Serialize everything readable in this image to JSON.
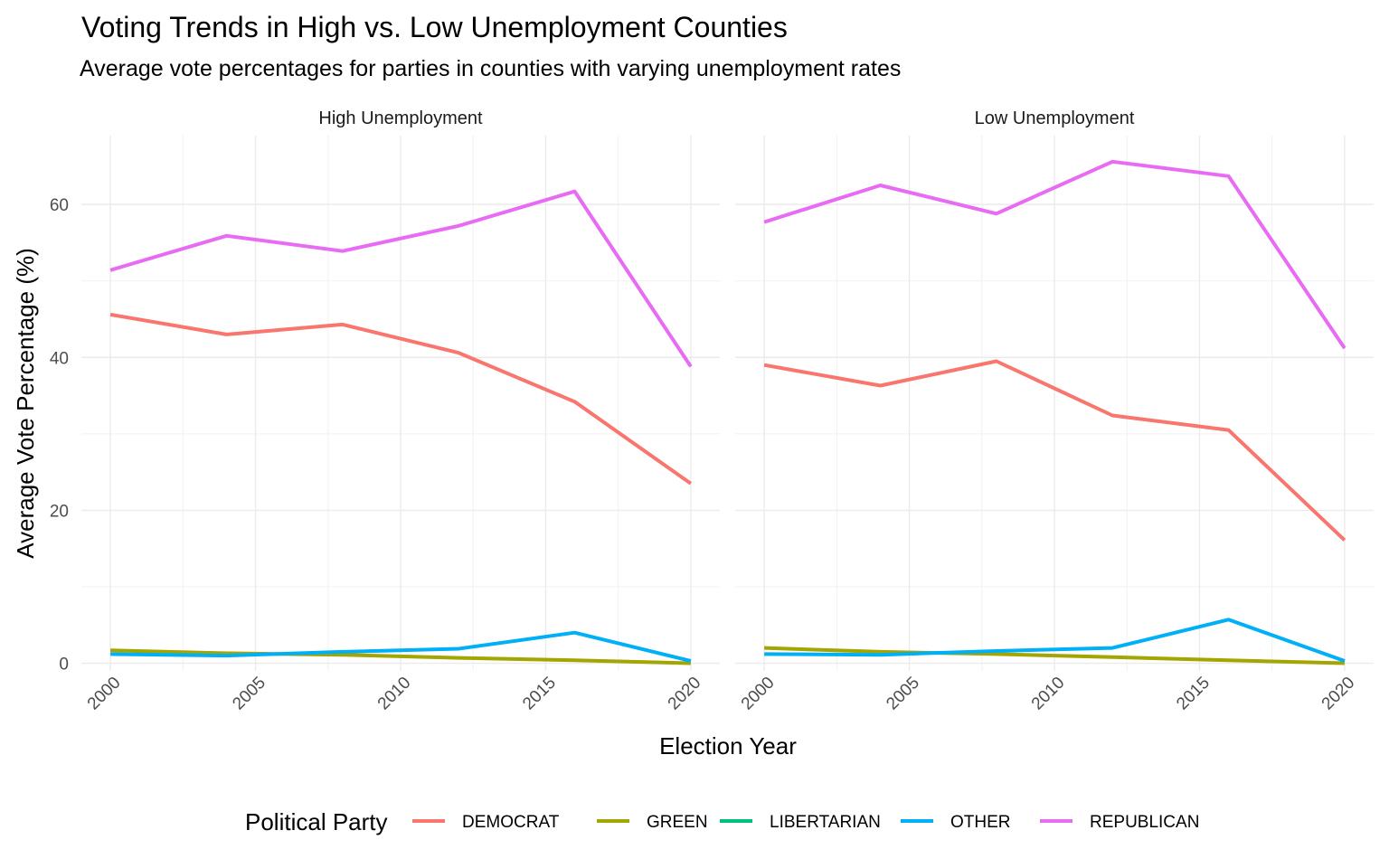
{
  "chart_data": {
    "type": "line",
    "title": "Voting Trends in High vs. Low Unemployment Counties",
    "subtitle": "Average vote percentages for parties in counties with varying unemployment rates",
    "xlabel": "Election Year",
    "ylabel": "Average Vote Percentage (%)",
    "x_ticks": [
      "2000",
      "2005",
      "2010",
      "2015",
      "2020"
    ],
    "y_ticks": [
      "0",
      "20",
      "40",
      "60"
    ],
    "xlim": [
      1999,
      2021
    ],
    "ylim": [
      -1,
      69
    ],
    "grid": true,
    "legend": {
      "title": "Political Party",
      "placement": "bottom",
      "entries": [
        "DEMOCRAT",
        "GREEN",
        "LIBERTARIAN",
        "OTHER",
        "REPUBLICAN"
      ]
    },
    "colors": {
      "DEMOCRAT": "#F8766D",
      "GREEN": "#A3A500",
      "LIBERTARIAN": "#00BF7D",
      "OTHER": "#00B0F6",
      "REPUBLICAN": "#E76BF3"
    },
    "x": [
      2000,
      2004,
      2008,
      2012,
      2016,
      2020
    ],
    "panels": [
      {
        "label": "High Unemployment",
        "series": [
          {
            "name": "DEMOCRAT",
            "values": [
              45.6,
              43.0,
              44.3,
              40.6,
              34.2,
              23.5
            ]
          },
          {
            "name": "GREEN",
            "values": [
              1.7,
              1.3,
              1.1,
              0.7,
              0.4,
              0.0
            ]
          },
          {
            "name": "LIBERTARIAN",
            "values": [
              null,
              null,
              null,
              null,
              null,
              null
            ]
          },
          {
            "name": "OTHER",
            "values": [
              1.2,
              1.0,
              1.5,
              1.9,
              4.0,
              0.3
            ]
          },
          {
            "name": "REPUBLICAN",
            "values": [
              51.4,
              55.9,
              53.9,
              57.2,
              61.7,
              38.8
            ]
          }
        ]
      },
      {
        "label": "Low Unemployment",
        "series": [
          {
            "name": "DEMOCRAT",
            "values": [
              39.0,
              36.3,
              39.5,
              32.4,
              30.5,
              16.1
            ]
          },
          {
            "name": "GREEN",
            "values": [
              2.0,
              1.5,
              1.2,
              0.8,
              0.4,
              0.0
            ]
          },
          {
            "name": "LIBERTARIAN",
            "values": [
              null,
              null,
              null,
              null,
              null,
              null
            ]
          },
          {
            "name": "OTHER",
            "values": [
              1.2,
              1.1,
              1.6,
              2.0,
              5.7,
              0.3
            ]
          },
          {
            "name": "REPUBLICAN",
            "values": [
              57.7,
              62.5,
              58.8,
              65.6,
              63.7,
              41.2
            ]
          }
        ]
      }
    ]
  }
}
